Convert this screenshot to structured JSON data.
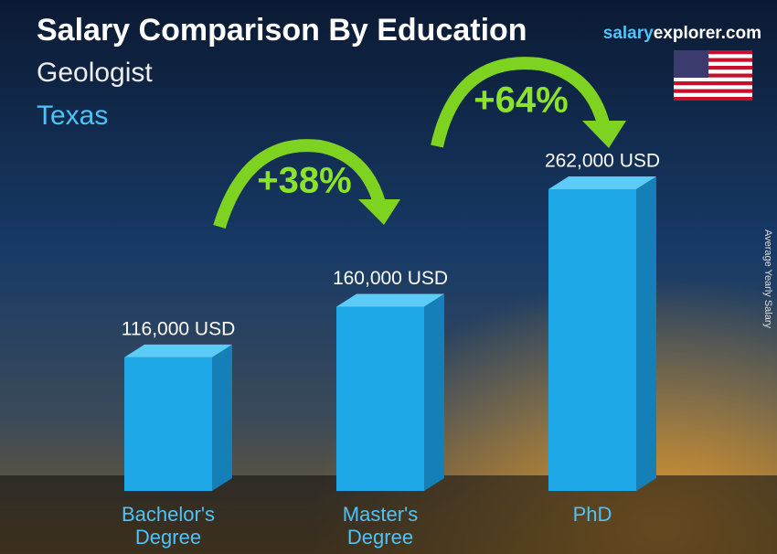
{
  "chart_data": {
    "type": "bar",
    "title": "Salary Comparison By Education",
    "subtitle": "Geologist",
    "location": "Texas",
    "source_parts": [
      "salary",
      "explorer.com"
    ],
    "y_axis_label": "Average Yearly Salary",
    "categories": [
      "Bachelor's Degree",
      "Master's Degree",
      "PhD"
    ],
    "values": [
      116000,
      160000,
      262000
    ],
    "value_labels": [
      "116,000 USD",
      "160,000 USD",
      "262,000 USD"
    ],
    "color": "#1ea8e8",
    "annotations": [
      "+38%",
      "+64%"
    ]
  }
}
